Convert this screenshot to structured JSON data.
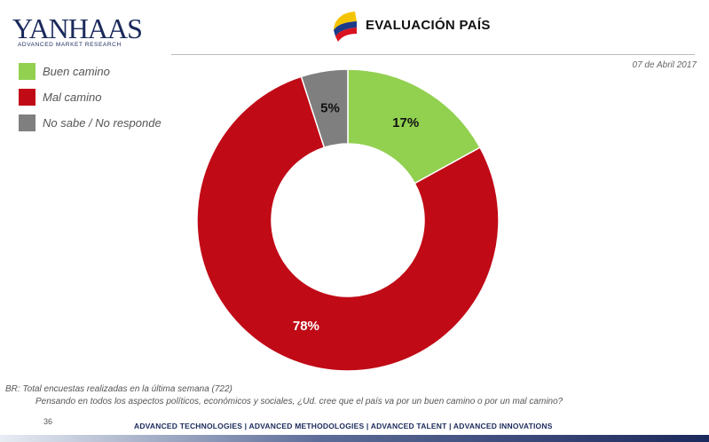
{
  "header": {
    "logo_text": "YANHAAS",
    "logo_subtitle": "ADVANCED MARKET RESEARCH",
    "title": "EVALUACIÓN PAÍS",
    "date": "07 de Abril 2017"
  },
  "colors": {
    "buen_camino": "#92d050",
    "mal_camino": "#c00a16",
    "no_sabe": "#7f7f7f",
    "brand_navy": "#1b2a5c",
    "flag_yellow": "#f5c400",
    "flag_blue": "#1b3a8a",
    "flag_red": "#d8121e"
  },
  "chart_data": {
    "type": "pie",
    "variant": "donut",
    "title": "",
    "categories": [
      "Buen camino",
      "Mal camino",
      "No sabe /  No responde"
    ],
    "values": [
      17,
      78,
      5
    ],
    "value_labels": [
      "17%",
      "78%",
      "5%"
    ],
    "unit": "%",
    "legend_position": "top-left"
  },
  "footer": {
    "base_note": "BR: Total encuestas realizadas en la última semana (722)",
    "question": "Pensando en todos los aspectos políticos, económicos y sociales, ¿Ud. cree que el país va por un buen camino o por un mal camino?",
    "page_number": "36",
    "tagline": "ADVANCED TECHNOLOGIES  |  ADVANCED METHODOLOGIES  |  ADVANCED TALENT  |  ADVANCED INNOVATIONS"
  }
}
